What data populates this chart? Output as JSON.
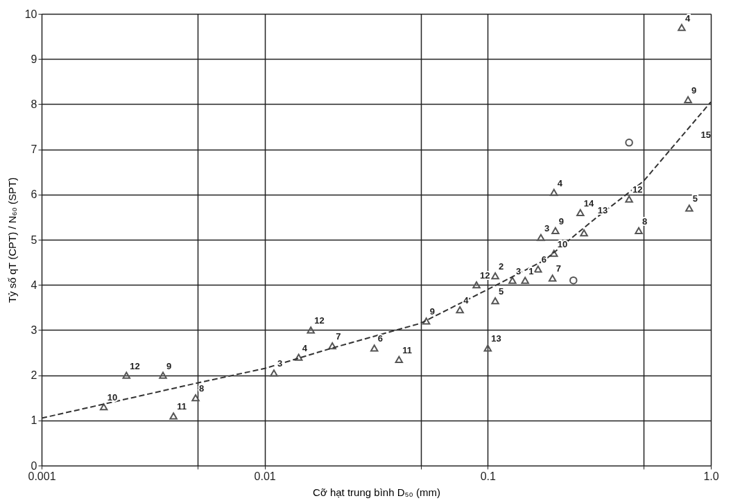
{
  "chart_data": {
    "type": "scatter",
    "xlabel": "Cỡ hạt trung bình D₅₀ (mm)",
    "ylabel": "Tỷ số qT (CPT) / N₆₀ (SPT)",
    "log": "x",
    "xlim": [
      0.001,
      1.0
    ],
    "xticks": [
      0.001,
      {
        "value": 0.005,
        "label": null
      },
      0.01,
      {
        "value": 0.05,
        "label": null
      },
      0.1,
      {
        "value": 0.5,
        "label": null
      },
      {
        "value": 1.0,
        "label": "1.0"
      }
    ],
    "ylim": [
      0,
      10
    ],
    "yticks": [
      0,
      1,
      2,
      3,
      4,
      5,
      6,
      7,
      8,
      9,
      10
    ],
    "grid": true,
    "series": [
      {
        "type": "scatter",
        "marker": "triangle",
        "color": "#555555",
        "x": [
          0.0019,
          0.0024,
          0.0035,
          0.0039,
          0.0049,
          0.011,
          0.0142,
          0.0161,
          0.0201,
          0.031,
          0.04,
          0.053,
          0.075,
          0.089,
          0.108,
          0.108,
          0.1,
          0.129,
          0.147,
          0.195,
          0.198,
          0.168,
          0.173,
          0.201,
          0.198,
          0.26,
          0.27,
          0.43,
          0.475,
          0.79,
          0.74,
          0.8
        ],
        "values": [
          1.3,
          2.0,
          2.0,
          1.1,
          1.5,
          2.05,
          2.4,
          3.0,
          2.65,
          2.6,
          2.35,
          3.2,
          3.45,
          4.0,
          4.2,
          3.65,
          2.6,
          4.1,
          4.1,
          4.15,
          4.7,
          4.35,
          5.05,
          5.2,
          6.05,
          5.6,
          5.15,
          5.9,
          5.2,
          8.1,
          9.7,
          5.7
        ]
      },
      {
        "type": "scatter",
        "marker": "circle",
        "color": "#555555",
        "x": [
          0.242,
          0.43
        ],
        "values": [
          4.1,
          7.15
        ]
      },
      {
        "type": "line",
        "marker": "none",
        "line_style": "dashed",
        "color": "#333333",
        "x": [
          0.001,
          0.005,
          0.01,
          0.02,
          0.05,
          0.1,
          0.18,
          0.3,
          0.5,
          1.0
        ],
        "values": [
          1.05,
          1.83,
          2.15,
          2.6,
          3.15,
          3.9,
          4.55,
          5.45,
          6.3,
          8.05
        ]
      }
    ],
    "annotations": [
      {
        "text": "10",
        "x": 0.0019,
        "y": 1.3
      },
      {
        "text": "12",
        "x": 0.0024,
        "y": 2.0
      },
      {
        "text": "9",
        "x": 0.0035,
        "y": 2.0
      },
      {
        "text": "11",
        "x": 0.0039,
        "y": 1.1
      },
      {
        "text": "8",
        "x": 0.0049,
        "y": 1.5
      },
      {
        "text": "3",
        "x": 0.011,
        "y": 2.05
      },
      {
        "text": "4",
        "x": 0.0142,
        "y": 2.4
      },
      {
        "text": "12",
        "x": 0.0161,
        "y": 3.0
      },
      {
        "text": "7",
        "x": 0.0201,
        "y": 2.65
      },
      {
        "text": "6",
        "x": 0.031,
        "y": 2.6
      },
      {
        "text": "11",
        "x": 0.04,
        "y": 2.35
      },
      {
        "text": "9",
        "x": 0.053,
        "y": 3.2
      },
      {
        "text": "4",
        "x": 0.075,
        "y": 3.45
      },
      {
        "text": "12",
        "x": 0.089,
        "y": 4.0
      },
      {
        "text": "2",
        "x": 0.108,
        "y": 4.2
      },
      {
        "text": "5",
        "x": 0.108,
        "y": 3.65
      },
      {
        "text": "13",
        "x": 0.1,
        "y": 2.6
      },
      {
        "text": "3",
        "x": 0.129,
        "y": 4.1
      },
      {
        "text": "1",
        "x": 0.147,
        "y": 4.1
      },
      {
        "text": "7",
        "x": 0.195,
        "y": 4.15
      },
      {
        "text": "10",
        "x": 0.198,
        "y": 4.7
      },
      {
        "text": "6",
        "x": 0.168,
        "y": 4.35
      },
      {
        "text": "3",
        "x": 0.173,
        "y": 5.05
      },
      {
        "text": "9",
        "x": 0.201,
        "y": 5.2
      },
      {
        "text": "4",
        "x": 0.198,
        "y": 6.05
      },
      {
        "text": "14",
        "x": 0.26,
        "y": 5.6
      },
      {
        "text": "13",
        "x": 0.3,
        "y": 5.45
      },
      {
        "text": "12",
        "x": 0.43,
        "y": 5.9
      },
      {
        "text": "8",
        "x": 0.475,
        "y": 5.2
      },
      {
        "text": "9",
        "x": 0.79,
        "y": 8.1
      },
      "15",
      {
        "text": "4",
        "x": 0.74,
        "y": 9.7
      },
      {
        "text": "5",
        "x": 0.8,
        "y": 5.7
      }
    ]
  }
}
